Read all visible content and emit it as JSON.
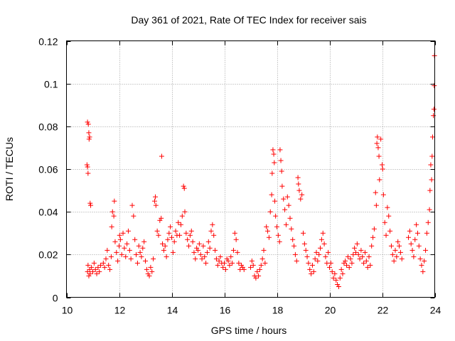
{
  "chart_data": {
    "type": "scatter",
    "title": "Day 361 of 2021, Rate Of TEC Index for receiver sais",
    "xlabel": "GPS time / hours",
    "ylabel": "ROTI / TECUs",
    "xlim": [
      10,
      24
    ],
    "ylim": [
      0,
      0.12
    ],
    "xticks": [
      10,
      12,
      14,
      16,
      18,
      20,
      22,
      24
    ],
    "xtick_labels": [
      "10",
      "12",
      "14",
      "16",
      "18",
      "20",
      "22",
      "24"
    ],
    "yticks": [
      0,
      0.02,
      0.04,
      0.06,
      0.08,
      0.1,
      0.12
    ],
    "ytick_labels": [
      "0",
      "0.02",
      "0.04",
      "0.06",
      "0.08",
      "0.1",
      "0.12"
    ],
    "grid": true,
    "marker": "plus",
    "color": "#ff0000",
    "series": [
      {
        "name": "ROTI",
        "points": [
          [
            10.8,
            0.012
          ],
          [
            10.82,
            0.015
          ],
          [
            10.85,
            0.01
          ],
          [
            10.88,
            0.013
          ],
          [
            10.9,
            0.011
          ],
          [
            10.95,
            0.014
          ],
          [
            11.0,
            0.012
          ],
          [
            11.05,
            0.016
          ],
          [
            11.1,
            0.013
          ],
          [
            11.15,
            0.011
          ],
          [
            11.2,
            0.014
          ],
          [
            11.25,
            0.012
          ],
          [
            11.3,
            0.015
          ],
          [
            10.78,
            0.062
          ],
          [
            10.8,
            0.061
          ],
          [
            10.82,
            0.058
          ],
          [
            10.8,
            0.082
          ],
          [
            10.83,
            0.081
          ],
          [
            10.85,
            0.077
          ],
          [
            10.86,
            0.074
          ],
          [
            10.88,
            0.075
          ],
          [
            10.9,
            0.044
          ],
          [
            10.92,
            0.043
          ],
          [
            11.4,
            0.016
          ],
          [
            11.45,
            0.014
          ],
          [
            11.5,
            0.018
          ],
          [
            11.55,
            0.022
          ],
          [
            11.6,
            0.015
          ],
          [
            11.65,
            0.013
          ],
          [
            11.7,
            0.019
          ],
          [
            11.72,
            0.033
          ],
          [
            11.75,
            0.04
          ],
          [
            11.8,
            0.038
          ],
          [
            11.82,
            0.045
          ],
          [
            11.85,
            0.026
          ],
          [
            11.9,
            0.021
          ],
          [
            11.95,
            0.017
          ],
          [
            12.0,
            0.024
          ],
          [
            12.02,
            0.029
          ],
          [
            12.05,
            0.027
          ],
          [
            12.1,
            0.02
          ],
          [
            12.15,
            0.03
          ],
          [
            12.2,
            0.023
          ],
          [
            12.25,
            0.019
          ],
          [
            12.3,
            0.025
          ],
          [
            12.35,
            0.031
          ],
          [
            12.4,
            0.022
          ],
          [
            12.45,
            0.018
          ],
          [
            12.5,
            0.043
          ],
          [
            12.55,
            0.038
          ],
          [
            12.6,
            0.027
          ],
          [
            12.65,
            0.02
          ],
          [
            12.7,
            0.016
          ],
          [
            12.75,
            0.024
          ],
          [
            12.8,
            0.021
          ],
          [
            12.85,
            0.019
          ],
          [
            12.9,
            0.023
          ],
          [
            12.95,
            0.026
          ],
          [
            13.0,
            0.017
          ],
          [
            13.05,
            0.013
          ],
          [
            13.1,
            0.011
          ],
          [
            13.15,
            0.01
          ],
          [
            13.2,
            0.014
          ],
          [
            13.25,
            0.012
          ],
          [
            13.3,
            0.018
          ],
          [
            13.35,
            0.045
          ],
          [
            13.38,
            0.047
          ],
          [
            13.4,
            0.043
          ],
          [
            13.45,
            0.031
          ],
          [
            13.5,
            0.029
          ],
          [
            13.55,
            0.036
          ],
          [
            13.6,
            0.037
          ],
          [
            13.62,
            0.066
          ],
          [
            13.65,
            0.025
          ],
          [
            13.7,
            0.022
          ],
          [
            13.75,
            0.024
          ],
          [
            13.8,
            0.019
          ],
          [
            13.85,
            0.027
          ],
          [
            13.9,
            0.03
          ],
          [
            13.95,
            0.033
          ],
          [
            14.0,
            0.028
          ],
          [
            14.05,
            0.021
          ],
          [
            14.1,
            0.026
          ],
          [
            14.15,
            0.031
          ],
          [
            14.2,
            0.029
          ],
          [
            14.25,
            0.035
          ],
          [
            14.3,
            0.029
          ],
          [
            14.35,
            0.034
          ],
          [
            14.4,
            0.038
          ],
          [
            14.45,
            0.052
          ],
          [
            14.48,
            0.051
          ],
          [
            14.5,
            0.04
          ],
          [
            14.55,
            0.03
          ],
          [
            14.6,
            0.027
          ],
          [
            14.65,
            0.024
          ],
          [
            14.7,
            0.029
          ],
          [
            14.75,
            0.031
          ],
          [
            14.8,
            0.026
          ],
          [
            14.85,
            0.021
          ],
          [
            14.9,
            0.018
          ],
          [
            14.95,
            0.023
          ],
          [
            15.0,
            0.022
          ],
          [
            15.05,
            0.025
          ],
          [
            15.1,
            0.02
          ],
          [
            15.15,
            0.018
          ],
          [
            15.2,
            0.024
          ],
          [
            15.25,
            0.019
          ],
          [
            15.3,
            0.016
          ],
          [
            15.35,
            0.021
          ],
          [
            15.4,
            0.026
          ],
          [
            15.45,
            0.023
          ],
          [
            15.5,
            0.031
          ],
          [
            15.55,
            0.034
          ],
          [
            15.6,
            0.029
          ],
          [
            15.65,
            0.022
          ],
          [
            15.7,
            0.018
          ],
          [
            15.75,
            0.015
          ],
          [
            15.8,
            0.017
          ],
          [
            15.85,
            0.019
          ],
          [
            15.9,
            0.016
          ],
          [
            15.95,
            0.014
          ],
          [
            16.0,
            0.016
          ],
          [
            16.05,
            0.013
          ],
          [
            16.1,
            0.018
          ],
          [
            16.15,
            0.017
          ],
          [
            16.2,
            0.015
          ],
          [
            16.25,
            0.019
          ],
          [
            16.3,
            0.016
          ],
          [
            16.35,
            0.022
          ],
          [
            16.4,
            0.03
          ],
          [
            16.45,
            0.027
          ],
          [
            16.5,
            0.021
          ],
          [
            16.55,
            0.016
          ],
          [
            16.6,
            0.013
          ],
          [
            16.65,
            0.015
          ],
          [
            16.7,
            0.014
          ],
          [
            16.75,
            0.013
          ],
          [
            17.0,
            0.014
          ],
          [
            17.05,
            0.017
          ],
          [
            17.1,
            0.015
          ],
          [
            17.15,
            0.01
          ],
          [
            17.2,
            0.009
          ],
          [
            17.25,
            0.012
          ],
          [
            17.3,
            0.01
          ],
          [
            17.35,
            0.013
          ],
          [
            17.4,
            0.015
          ],
          [
            17.45,
            0.018
          ],
          [
            17.5,
            0.022
          ],
          [
            17.55,
            0.016
          ],
          [
            17.6,
            0.033
          ],
          [
            17.65,
            0.031
          ],
          [
            17.7,
            0.028
          ],
          [
            17.75,
            0.04
          ],
          [
            17.8,
            0.048
          ],
          [
            17.82,
            0.058
          ],
          [
            17.85,
            0.069
          ],
          [
            17.88,
            0.067
          ],
          [
            17.9,
            0.063
          ],
          [
            17.92,
            0.045
          ],
          [
            17.95,
            0.038
          ],
          [
            18.0,
            0.033
          ],
          [
            18.05,
            0.029
          ],
          [
            18.1,
            0.026
          ],
          [
            18.12,
            0.069
          ],
          [
            18.15,
            0.064
          ],
          [
            18.18,
            0.059
          ],
          [
            18.2,
            0.052
          ],
          [
            18.25,
            0.046
          ],
          [
            18.3,
            0.041
          ],
          [
            18.35,
            0.034
          ],
          [
            18.4,
            0.047
          ],
          [
            18.45,
            0.043
          ],
          [
            18.5,
            0.037
          ],
          [
            18.55,
            0.032
          ],
          [
            18.6,
            0.027
          ],
          [
            18.65,
            0.024
          ],
          [
            18.7,
            0.02
          ],
          [
            18.75,
            0.017
          ],
          [
            18.8,
            0.056
          ],
          [
            18.82,
            0.053
          ],
          [
            18.85,
            0.05
          ],
          [
            18.9,
            0.046
          ],
          [
            18.95,
            0.048
          ],
          [
            19.0,
            0.03
          ],
          [
            19.05,
            0.025
          ],
          [
            19.1,
            0.022
          ],
          [
            19.15,
            0.019
          ],
          [
            19.2,
            0.016
          ],
          [
            19.25,
            0.013
          ],
          [
            19.3,
            0.011
          ],
          [
            19.35,
            0.015
          ],
          [
            19.4,
            0.012
          ],
          [
            19.45,
            0.018
          ],
          [
            19.5,
            0.021
          ],
          [
            19.55,
            0.017
          ],
          [
            19.6,
            0.02
          ],
          [
            19.65,
            0.023
          ],
          [
            19.7,
            0.027
          ],
          [
            19.75,
            0.03
          ],
          [
            19.8,
            0.025
          ],
          [
            19.85,
            0.019
          ],
          [
            19.9,
            0.016
          ],
          [
            19.95,
            0.021
          ],
          [
            20.0,
            0.014
          ],
          [
            20.05,
            0.016
          ],
          [
            20.1,
            0.012
          ],
          [
            20.15,
            0.009
          ],
          [
            20.2,
            0.011
          ],
          [
            20.25,
            0.008
          ],
          [
            20.3,
            0.006
          ],
          [
            20.35,
            0.005
          ],
          [
            20.4,
            0.009
          ],
          [
            20.45,
            0.013
          ],
          [
            20.5,
            0.011
          ],
          [
            20.55,
            0.016
          ],
          [
            20.6,
            0.017
          ],
          [
            20.65,
            0.015
          ],
          [
            20.7,
            0.019
          ],
          [
            20.75,
            0.014
          ],
          [
            20.8,
            0.018
          ],
          [
            20.85,
            0.016
          ],
          [
            20.9,
            0.02
          ],
          [
            20.95,
            0.023
          ],
          [
            21.0,
            0.021
          ],
          [
            21.05,
            0.025
          ],
          [
            21.1,
            0.02
          ],
          [
            21.15,
            0.018
          ],
          [
            21.2,
            0.022
          ],
          [
            21.25,
            0.019
          ],
          [
            21.3,
            0.016
          ],
          [
            21.35,
            0.021
          ],
          [
            21.4,
            0.017
          ],
          [
            21.45,
            0.014
          ],
          [
            21.5,
            0.019
          ],
          [
            21.55,
            0.015
          ],
          [
            21.6,
            0.024
          ],
          [
            21.65,
            0.028
          ],
          [
            21.7,
            0.032
          ],
          [
            21.75,
            0.049
          ],
          [
            21.78,
            0.043
          ],
          [
            21.8,
            0.072
          ],
          [
            21.82,
            0.075
          ],
          [
            21.85,
            0.07
          ],
          [
            21.88,
            0.066
          ],
          [
            21.9,
            0.055
          ],
          [
            21.95,
            0.074
          ],
          [
            22.0,
            0.062
          ],
          [
            22.02,
            0.06
          ],
          [
            22.05,
            0.048
          ],
          [
            22.1,
            0.035
          ],
          [
            22.15,
            0.029
          ],
          [
            22.2,
            0.042
          ],
          [
            22.25,
            0.038
          ],
          [
            22.3,
            0.031
          ],
          [
            22.35,
            0.024
          ],
          [
            22.4,
            0.02
          ],
          [
            22.45,
            0.017
          ],
          [
            22.5,
            0.022
          ],
          [
            22.55,
            0.019
          ],
          [
            22.6,
            0.026
          ],
          [
            22.65,
            0.024
          ],
          [
            22.7,
            0.021
          ],
          [
            22.75,
            0.018
          ],
          [
            23.0,
            0.028
          ],
          [
            23.05,
            0.031
          ],
          [
            23.1,
            0.025
          ],
          [
            23.15,
            0.022
          ],
          [
            23.2,
            0.019
          ],
          [
            23.25,
            0.027
          ],
          [
            23.3,
            0.034
          ],
          [
            23.35,
            0.03
          ],
          [
            23.4,
            0.024
          ],
          [
            23.45,
            0.018
          ],
          [
            23.5,
            0.015
          ],
          [
            23.55,
            0.012
          ],
          [
            23.6,
            0.017
          ],
          [
            23.65,
            0.022
          ],
          [
            23.7,
            0.03
          ],
          [
            23.75,
            0.035
          ],
          [
            23.8,
            0.041
          ],
          [
            23.82,
            0.05
          ],
          [
            23.85,
            0.062
          ],
          [
            23.88,
            0.055
          ],
          [
            23.9,
            0.066
          ],
          [
            23.92,
            0.075
          ],
          [
            23.95,
            0.085
          ],
          [
            23.97,
            0.088
          ],
          [
            23.98,
            0.099
          ],
          [
            23.99,
            0.113
          ]
        ]
      }
    ]
  }
}
